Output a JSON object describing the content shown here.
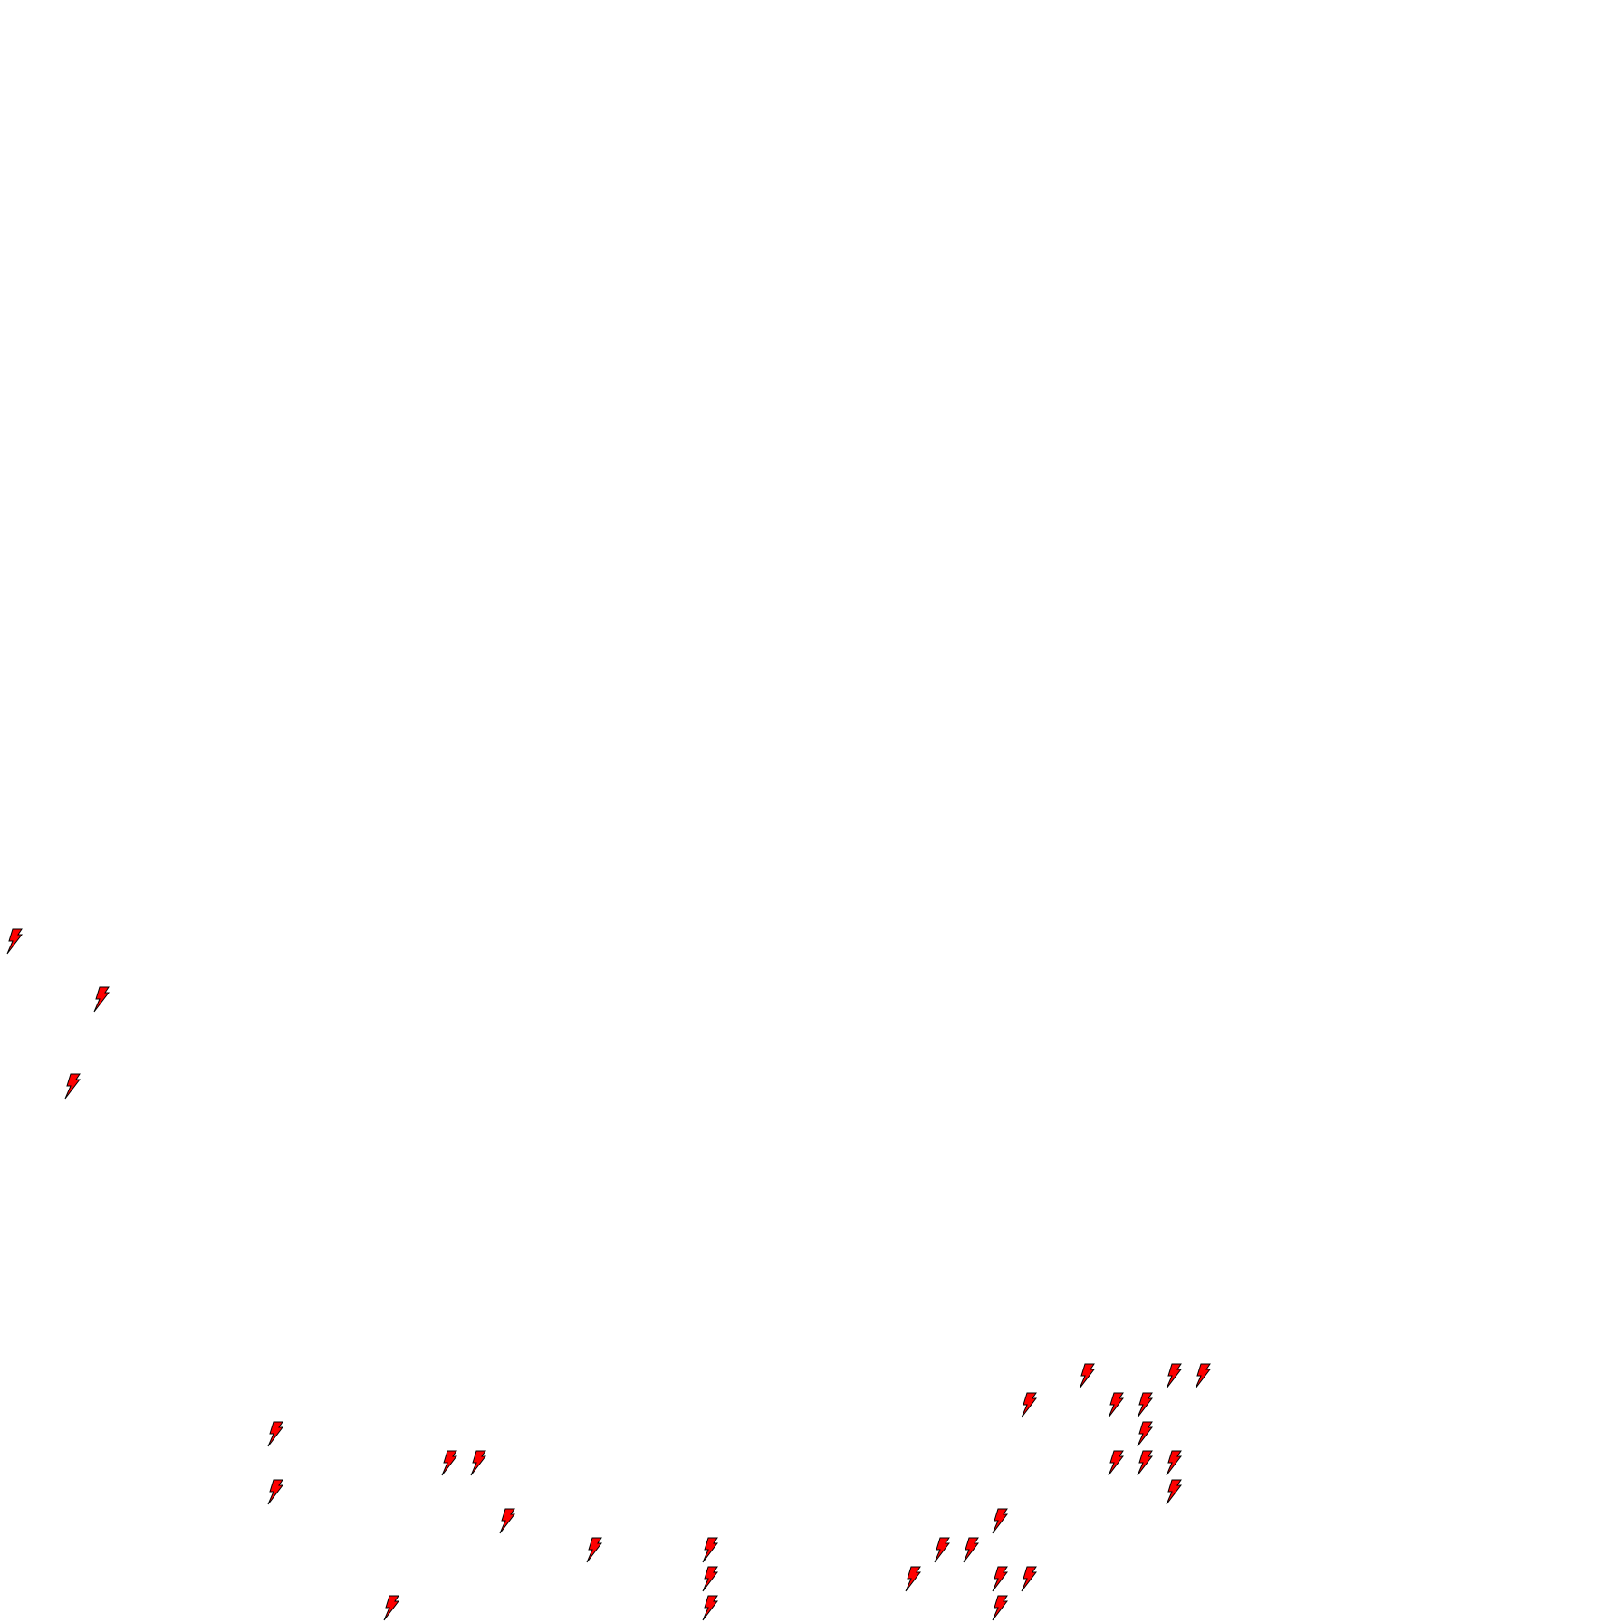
{
  "markers": {
    "icon": "lightning-bolt-icon",
    "fill_color": "#ff0000",
    "stroke_color": "#000000",
    "count": 31
  }
}
